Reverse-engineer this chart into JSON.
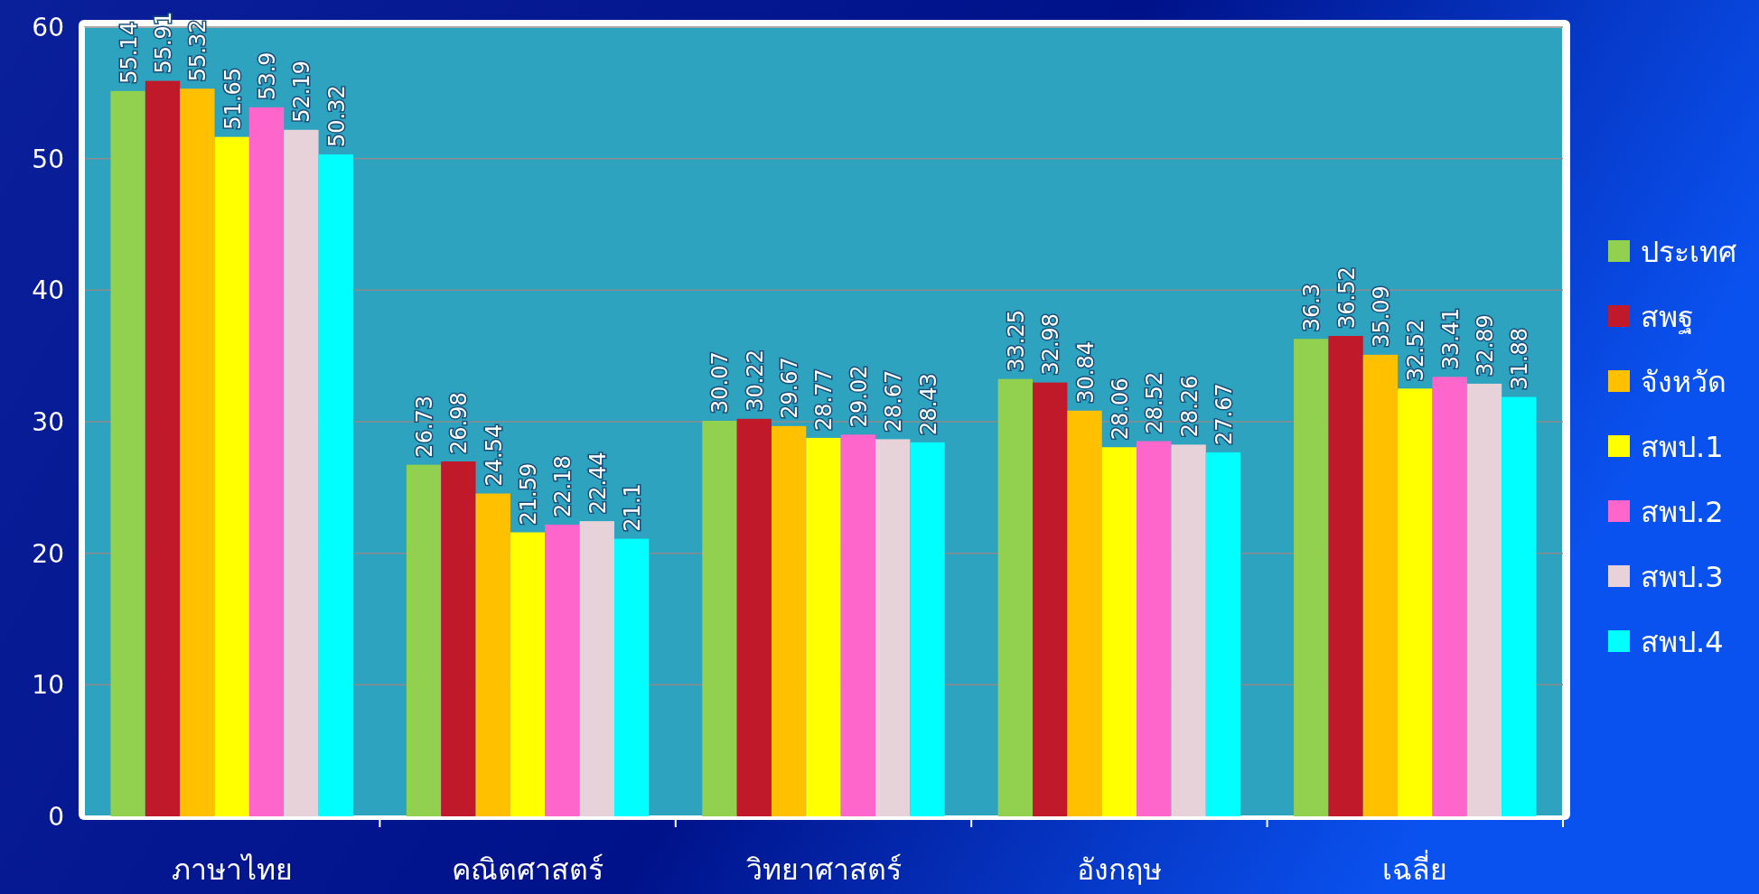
{
  "chart_data": {
    "type": "bar",
    "categories": [
      "ภาษาไทย",
      "คณิตศาสตร์",
      "วิทยาศาสตร์",
      "อังกฤษ",
      "เฉลี่ย"
    ],
    "series": [
      {
        "name": "ประเทศ",
        "color": "#92d050",
        "values": [
          55.14,
          26.73,
          30.07,
          33.25,
          36.3
        ]
      },
      {
        "name": "สพฐ",
        "color": "#c0192a",
        "values": [
          55.91,
          26.98,
          30.22,
          32.98,
          36.52
        ]
      },
      {
        "name": "จังหวัด",
        "color": "#ffc000",
        "values": [
          55.32,
          24.54,
          29.67,
          30.84,
          35.09
        ]
      },
      {
        "name": "สพป.1",
        "color": "#ffff00",
        "values": [
          51.65,
          21.59,
          28.77,
          28.06,
          32.52
        ]
      },
      {
        "name": "สพป.2",
        "color": "#ff66cc",
        "values": [
          53.9,
          22.18,
          29.02,
          28.52,
          33.41
        ]
      },
      {
        "name": "สพป.3",
        "color": "#e6d2d8",
        "values": [
          52.19,
          22.44,
          28.67,
          28.26,
          32.89
        ]
      },
      {
        "name": "สพป.4",
        "color": "#00ffff",
        "values": [
          50.32,
          21.1,
          28.43,
          27.67,
          31.88
        ]
      }
    ],
    "ylim": [
      0,
      60
    ],
    "yticks": [
      0,
      10,
      20,
      30,
      40,
      50,
      60
    ],
    "grid": "y",
    "legend": "right",
    "data_labels": true
  }
}
